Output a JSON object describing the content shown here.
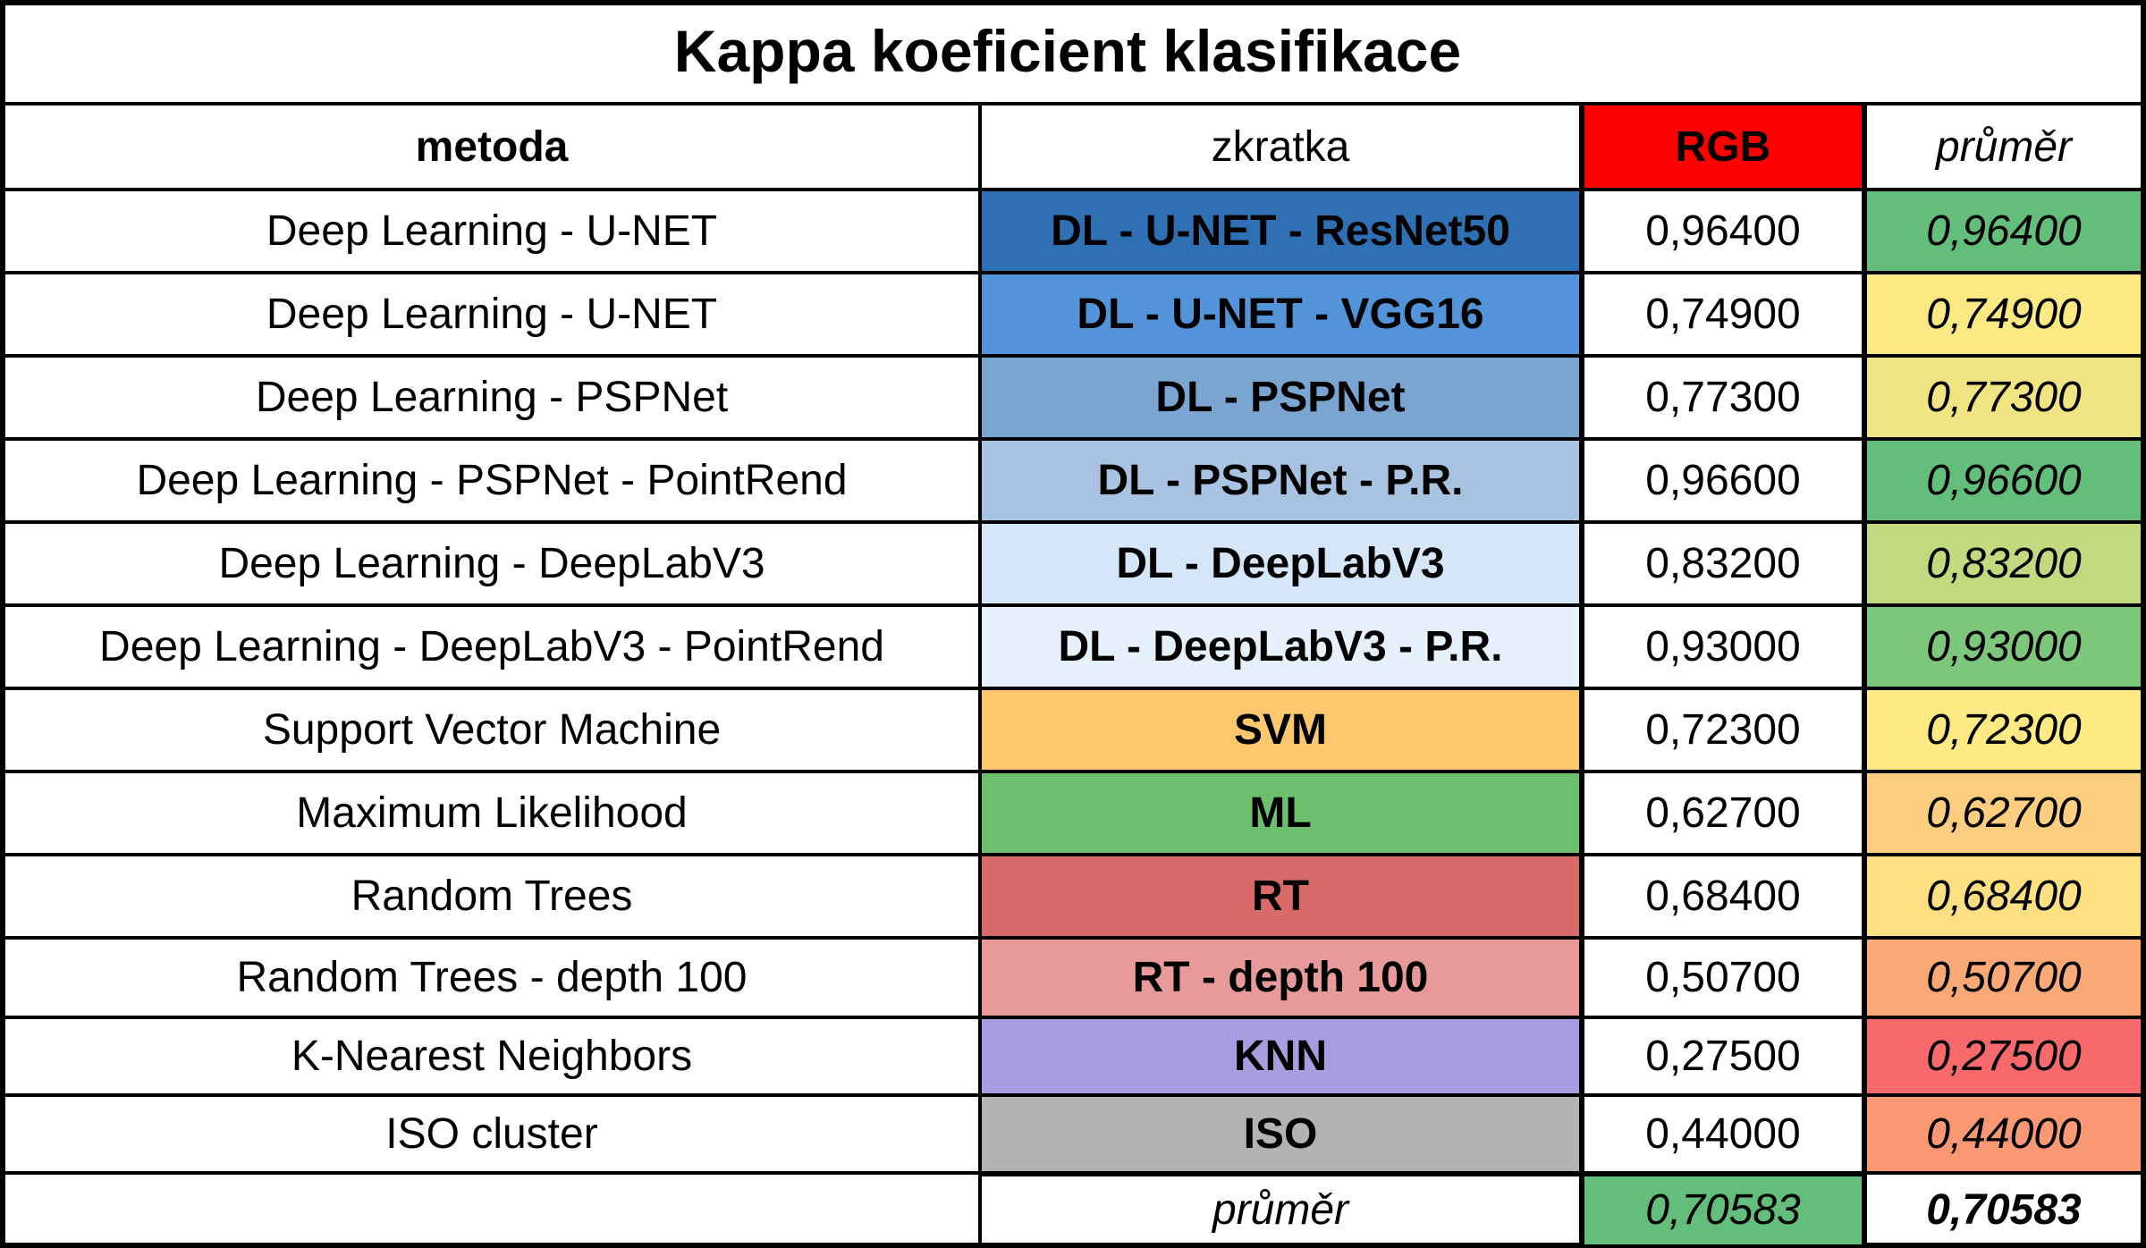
{
  "title": "Kappa koeficient klasifikace",
  "header": {
    "metoda": "metoda",
    "zkratka": "zkratka",
    "rgb": "RGB",
    "prumer": "průměr"
  },
  "rows": [
    {
      "metoda": "Deep Learning - U-NET",
      "zkratka": "DL - U-NET - ResNet50",
      "rgb": "0,96400",
      "prumer": "0,96400",
      "abbr_color": "#2f70b5",
      "avg_color": "#63be7b"
    },
    {
      "metoda": "Deep Learning - U-NET",
      "zkratka": "DL - U-NET - VGG16",
      "rgb": "0,74900",
      "prumer": "0,74900",
      "abbr_color": "#5293d9",
      "avg_color": "#fde983"
    },
    {
      "metoda": "Deep Learning - PSPNet",
      "zkratka": "DL - PSPNet",
      "rgb": "0,77300",
      "prumer": "0,77300",
      "abbr_color": "#7aa5d1",
      "avg_color": "#f0e582"
    },
    {
      "metoda": "Deep Learning - PSPNet - PointRend",
      "zkratka": "DL - PSPNet - P.R.",
      "rgb": "0,96600",
      "prumer": "0,96600",
      "abbr_color": "#a8c3e2",
      "avg_color": "#63be7b"
    },
    {
      "metoda": "Deep Learning - DeepLabV3",
      "zkratka": "DL - DeepLabV3",
      "rgb": "0,83200",
      "prumer": "0,83200",
      "abbr_color": "#d4e6f8",
      "avg_color": "#c2da7f"
    },
    {
      "metoda": "Deep Learning - DeepLabV3 - PointRend",
      "zkratka": "DL - DeepLabV3 - P.R.",
      "rgb": "0,93000",
      "prumer": "0,93000",
      "abbr_color": "#e6f1fb",
      "avg_color": "#7dc77c"
    },
    {
      "metoda": "Support Vector Machine",
      "zkratka": "SVM",
      "rgb": "0,72300",
      "prumer": "0,72300",
      "abbr_color": "#fdc76d",
      "avg_color": "#fee983"
    },
    {
      "metoda": "Maximum Likelihood",
      "zkratka": "ML",
      "rgb": "0,62700",
      "prumer": "0,62700",
      "abbr_color": "#6cbf6c",
      "avg_color": "#fdce7f"
    },
    {
      "metoda": "Random Trees",
      "zkratka": "RT",
      "rgb": "0,68400",
      "prumer": "0,68400",
      "abbr_color": "#d96a6a",
      "avg_color": "#fee082"
    },
    {
      "metoda": "Random Trees - depth 100",
      "zkratka": "RT - depth 100",
      "rgb": "0,50700",
      "prumer": "0,50700",
      "abbr_color": "#e89a9a",
      "avg_color": "#fba877"
    },
    {
      "metoda": "K-Nearest Neighbors",
      "zkratka": "KNN",
      "rgb": "0,27500",
      "prumer": "0,27500",
      "abbr_color": "#a89de0",
      "avg_color": "#f8696b"
    },
    {
      "metoda": "ISO cluster",
      "zkratka": "ISO",
      "rgb": "0,44000",
      "prumer": "0,44000",
      "abbr_color": "#b3b3b3",
      "avg_color": "#fa9874"
    }
  ],
  "footer": {
    "label": "průměr",
    "rgb_avg": "0,70583",
    "total_avg": "0,70583",
    "rgb_avg_color": "#63be7b"
  },
  "colors": {
    "rgb_header": "#ff0000",
    "border": "#000000"
  }
}
